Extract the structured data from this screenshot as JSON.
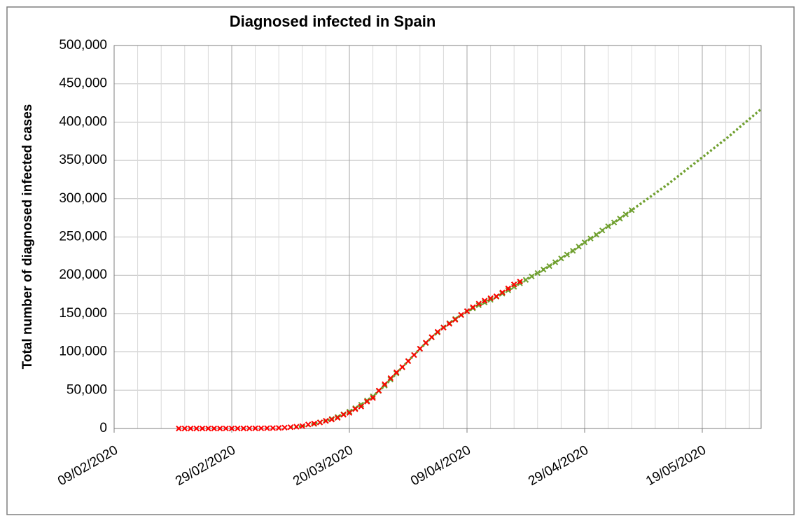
{
  "chart_data": {
    "type": "line",
    "title": "Diagnosed infected in Spain",
    "y_label": "Total number of diagnosed infected cases",
    "xlim": [
      "09/02/2020",
      "29/05/2020"
    ],
    "xticks": [
      "09/02/2020",
      "29/02/2020",
      "20/03/2020",
      "09/04/2020",
      "29/04/2020",
      "19/05/2020"
    ],
    "ylim": [
      0,
      500000
    ],
    "yticks": [
      0,
      {
        "value": 50000,
        "label": "50,000"
      },
      {
        "value": 100000,
        "label": "100,000"
      },
      {
        "value": 150000,
        "label": "150,000"
      },
      {
        "value": 200000,
        "label": "200,000"
      },
      {
        "value": 250000,
        "label": "250,000"
      },
      {
        "value": 300000,
        "label": "300,000"
      },
      {
        "value": 350000,
        "label": "350,000"
      },
      {
        "value": 400000,
        "label": "400,000"
      },
      {
        "value": 450000,
        "label": "450,000"
      },
      {
        "value": 500000,
        "label": "500,000"
      }
    ],
    "grid": true,
    "series": [
      {
        "color": "#70a030",
        "style": "dotted",
        "x": [
          "10/03/2020",
          "12/03/2020",
          "14/03/2020",
          "16/03/2020",
          "18/03/2020",
          "20/03/2020",
          "22/03/2020",
          "24/03/2020",
          "26/03/2020",
          "28/03/2020",
          "30/03/2020",
          "01/04/2020",
          "03/04/2020",
          "05/04/2020",
          "07/04/2020",
          "09/04/2020",
          "11/04/2020",
          "13/04/2020",
          "15/04/2020",
          "17/04/2020",
          "19/04/2020",
          "21/04/2020",
          "23/04/2020",
          "25/04/2020",
          "27/04/2020",
          "29/04/2020",
          "01/05/2020",
          "03/05/2020",
          "05/05/2020",
          "07/05/2020",
          "09/05/2020",
          "11/05/2020",
          "13/05/2020",
          "15/05/2020",
          "17/05/2020",
          "19/05/2020",
          "21/05/2020",
          "23/05/2020",
          "25/05/2020",
          "27/05/2020",
          "29/05/2020"
        ],
        "values": [
          1500,
          3000,
          6000,
          10000,
          15000,
          22000,
          31000,
          42000,
          56000,
          72000,
          88000,
          104000,
          119000,
          132000,
          143000,
          153000,
          161000,
          168000,
          176000,
          185000,
          194000,
          203000,
          212000,
          222000,
          232000,
          243000,
          253000,
          264000,
          274000,
          285000,
          296000,
          307000,
          318000,
          330000,
          342000,
          354000,
          366000,
          378000,
          391000,
          404000,
          417000
        ]
      },
      {
        "color": "#70a030",
        "style": "marker",
        "x": [
          "14/03/2020",
          "15/03/2020",
          "16/03/2020",
          "17/03/2020",
          "18/03/2020",
          "19/03/2020",
          "20/03/2020",
          "21/03/2020",
          "22/03/2020",
          "23/03/2020",
          "24/03/2020",
          "25/03/2020",
          "26/03/2020",
          "27/03/2020",
          "28/03/2020",
          "29/03/2020",
          "30/03/2020",
          "31/03/2020",
          "01/04/2020",
          "02/04/2020",
          "03/04/2020",
          "04/04/2020",
          "05/04/2020",
          "06/04/2020",
          "07/04/2020",
          "08/04/2020",
          "09/04/2020",
          "10/04/2020",
          "11/04/2020",
          "12/04/2020",
          "13/04/2020",
          "14/04/2020",
          "15/04/2020",
          "16/04/2020",
          "17/04/2020",
          "18/04/2020",
          "19/04/2020",
          "20/04/2020",
          "21/04/2020",
          "22/04/2020",
          "23/04/2020",
          "24/04/2020",
          "25/04/2020",
          "26/04/2020",
          "27/04/2020",
          "28/04/2020",
          "29/04/2020",
          "30/04/2020",
          "01/05/2020",
          "02/05/2020",
          "03/05/2020",
          "04/05/2020",
          "05/05/2020",
          "06/05/2020",
          "07/05/2020"
        ],
        "values": [
          6000,
          8000,
          10000,
          12500,
          15000,
          18500,
          22000,
          26500,
          31000,
          36500,
          42000,
          49000,
          56000,
          64000,
          72000,
          80000,
          88000,
          96000,
          104000,
          111500,
          119000,
          125500,
          132000,
          137500,
          143000,
          148000,
          153000,
          157000,
          161000,
          164500,
          168000,
          172000,
          176000,
          180500,
          185000,
          189500,
          194000,
          198500,
          203000,
          207500,
          212000,
          217000,
          222000,
          227000,
          232000,
          237500,
          243000,
          248000,
          253000,
          258500,
          264000,
          269000,
          274000,
          279500,
          285000
        ]
      },
      {
        "color": "#ff0000",
        "style": "marker",
        "x": [
          "20/02/2020",
          "21/02/2020",
          "22/02/2020",
          "23/02/2020",
          "24/02/2020",
          "25/02/2020",
          "26/02/2020",
          "27/02/2020",
          "28/02/2020",
          "29/02/2020",
          "01/03/2020",
          "02/03/2020",
          "03/03/2020",
          "04/03/2020",
          "05/03/2020",
          "06/03/2020",
          "07/03/2020",
          "08/03/2020",
          "09/03/2020",
          "10/03/2020",
          "11/03/2020",
          "12/03/2020",
          "13/03/2020",
          "14/03/2020",
          "15/03/2020",
          "16/03/2020",
          "17/03/2020",
          "18/03/2020",
          "19/03/2020",
          "20/03/2020",
          "21/03/2020",
          "22/03/2020",
          "23/03/2020",
          "24/03/2020",
          "25/03/2020",
          "26/03/2020",
          "27/03/2020",
          "28/03/2020",
          "29/03/2020",
          "30/03/2020",
          "31/03/2020",
          "01/04/2020",
          "02/04/2020",
          "03/04/2020",
          "04/04/2020",
          "05/04/2020",
          "06/04/2020",
          "07/04/2020",
          "08/04/2020",
          "09/04/2020",
          "10/04/2020",
          "11/04/2020",
          "12/04/2020",
          "13/04/2020",
          "14/04/2020",
          "15/04/2020",
          "16/04/2020",
          "17/04/2020",
          "18/04/2020"
        ],
        "values": [
          2,
          2,
          2,
          2,
          2,
          6,
          13,
          15,
          32,
          45,
          84,
          120,
          165,
          222,
          259,
          400,
          500,
          673,
          1073,
          1695,
          2277,
          3146,
          5232,
          6391,
          7798,
          9942,
          11748,
          13910,
          17963,
          20410,
          25374,
          28603,
          35136,
          39885,
          49515,
          57786,
          65719,
          73235,
          80110,
          87956,
          95923,
          104118,
          112065,
          119199,
          126168,
          131646,
          136675,
          141942,
          148220,
          153222,
          158273,
          163027,
          166831,
          170099,
          172541,
          177633,
          182816,
          188068,
          191726
        ]
      }
    ]
  }
}
